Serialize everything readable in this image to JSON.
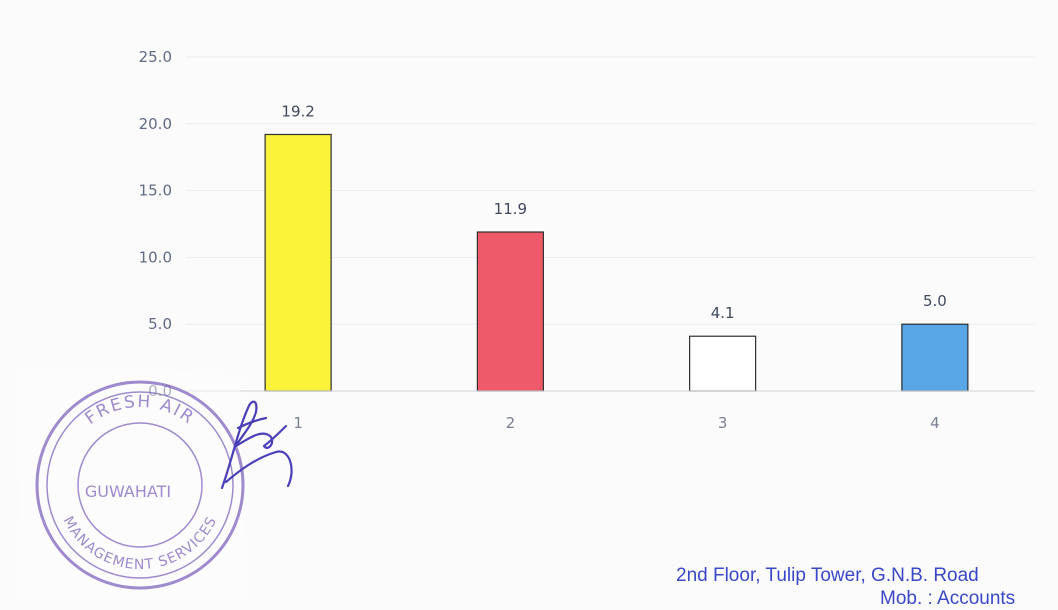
{
  "chart_data": {
    "type": "bar",
    "categories": [
      "1",
      "2",
      "3",
      "4"
    ],
    "values": [
      19.2,
      11.9,
      4.1,
      5.0
    ],
    "value_labels": [
      "19.2",
      "11.9",
      "4.1",
      "5.0"
    ],
    "bar_colors": [
      "#fbf33a",
      "#ef5a6a",
      "#ffffff",
      "#58a6e6"
    ],
    "ylim": [
      0,
      25
    ],
    "yticks": [
      0,
      5,
      10,
      15,
      20,
      25
    ],
    "ytick_labels": [
      "0.0",
      "5.0",
      "10.0",
      "15.0",
      "20.0",
      "25.0"
    ],
    "grid": true,
    "legend": "none",
    "title": "",
    "xlabel": "",
    "ylabel": ""
  },
  "stamp": {
    "text_top": "FRESH AIR",
    "text_center": "GUWAHATI",
    "text_bottom": "MANAGEMENT SERVICES",
    "color": "#8a72c4"
  },
  "signature_color": "#4a3fb8",
  "footer": {
    "address": "2nd Floor, Tulip Tower, G.N.B. Road",
    "mob": "Mob. : Accounts"
  }
}
